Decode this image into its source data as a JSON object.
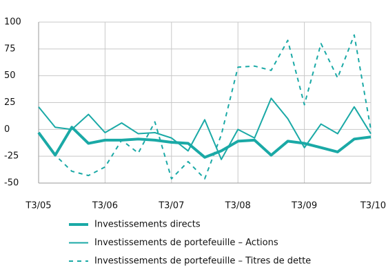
{
  "chart_data": {
    "type": "line",
    "categories": [
      "T3/05",
      null,
      null,
      null,
      "T3/06",
      null,
      null,
      null,
      "T3/07",
      null,
      null,
      null,
      "T3/08",
      null,
      null,
      null,
      "T3/09",
      null,
      null,
      null,
      "T3/10"
    ],
    "series": [
      {
        "name": "Investissements directs",
        "color": "#1aa9a6",
        "width": 4,
        "style": "solid",
        "values": [
          -3,
          -24,
          2,
          -13,
          -10,
          -10,
          -9,
          -10,
          -12,
          -13,
          -26,
          -20,
          -11,
          -10,
          -24,
          -11,
          -13,
          -17,
          -21,
          -9,
          -7
        ]
      },
      {
        "name": "Investissements de portefeuille – Actions",
        "color": "#1aa9a6",
        "width": 2,
        "style": "solid",
        "values": [
          21,
          2,
          0,
          14,
          -3,
          6,
          -4,
          -3,
          -8,
          -20,
          9,
          -28,
          0,
          -8,
          29,
          10,
          -17,
          5,
          -4,
          21,
          -4
        ]
      },
      {
        "name": "Investissements de portefeuille – Titres de dette",
        "color": "#1aa9a6",
        "width": 2,
        "style": "dashed",
        "values": [
          -3,
          -24,
          -39,
          -43,
          -35,
          -10,
          -22,
          7,
          -46,
          -30,
          -46,
          -5,
          58,
          59,
          55,
          83,
          23,
          80,
          48,
          88,
          0
        ]
      }
    ],
    "ylim": [
      -50,
      100
    ],
    "yticks": [
      -50,
      -25,
      0,
      25,
      50,
      75,
      100
    ],
    "grid": true
  }
}
